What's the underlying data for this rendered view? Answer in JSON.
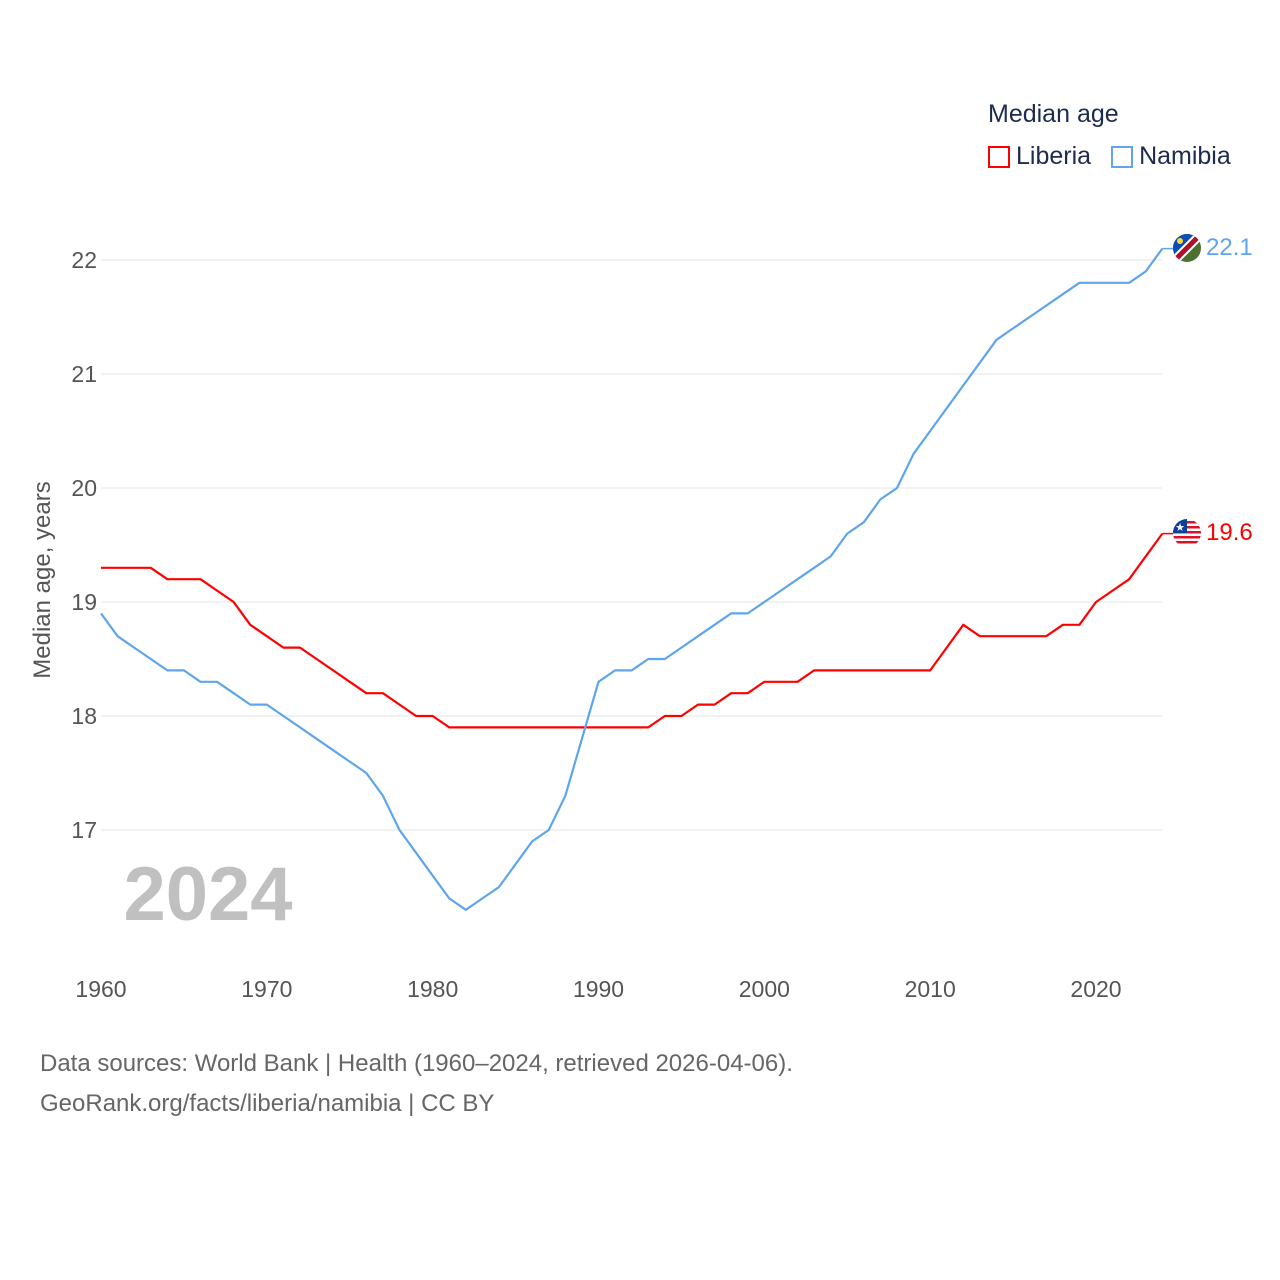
{
  "chart_data": {
    "type": "line",
    "title": "",
    "xlabel": "",
    "ylabel": "Median age, years",
    "xlim": [
      1960,
      2024
    ],
    "ylim": [
      16,
      22.6
    ],
    "yticks": [
      17,
      18,
      19,
      20,
      21,
      22
    ],
    "xticks": [
      1960,
      1970,
      1980,
      1990,
      2000,
      2010,
      2020
    ],
    "grid": true,
    "legend_title": "Median age",
    "legend_placement": "top-right",
    "year_label": "2024",
    "x": [
      1960,
      1961,
      1962,
      1963,
      1964,
      1965,
      1966,
      1967,
      1968,
      1969,
      1970,
      1971,
      1972,
      1973,
      1974,
      1975,
      1976,
      1977,
      1978,
      1979,
      1980,
      1981,
      1982,
      1983,
      1984,
      1985,
      1986,
      1987,
      1988,
      1989,
      1990,
      1991,
      1992,
      1993,
      1994,
      1995,
      1996,
      1997,
      1998,
      1999,
      2000,
      2001,
      2002,
      2003,
      2004,
      2005,
      2006,
      2007,
      2008,
      2009,
      2010,
      2011,
      2012,
      2013,
      2014,
      2015,
      2016,
      2017,
      2018,
      2019,
      2020,
      2021,
      2022,
      2023,
      2024
    ],
    "series": [
      {
        "name": "Liberia",
        "color": "#ff0000",
        "end_label": "19.6",
        "values": [
          19.3,
          19.3,
          19.3,
          19.3,
          19.2,
          19.2,
          19.2,
          19.1,
          19.0,
          18.8,
          18.7,
          18.6,
          18.6,
          18.5,
          18.4,
          18.3,
          18.2,
          18.2,
          18.1,
          18.0,
          18.0,
          17.9,
          17.9,
          17.9,
          17.9,
          17.9,
          17.9,
          17.9,
          17.9,
          17.9,
          17.9,
          17.9,
          17.9,
          17.9,
          18.0,
          18.0,
          18.1,
          18.1,
          18.2,
          18.2,
          18.3,
          18.3,
          18.3,
          18.4,
          18.4,
          18.4,
          18.4,
          18.4,
          18.4,
          18.4,
          18.4,
          18.6,
          18.8,
          18.7,
          18.7,
          18.7,
          18.7,
          18.7,
          18.8,
          18.8,
          19.0,
          19.1,
          19.2,
          19.4,
          19.6
        ]
      },
      {
        "name": "Namibia",
        "color": "#5ea5ec",
        "end_label": "22.1",
        "values": [
          18.9,
          18.7,
          18.6,
          18.5,
          18.4,
          18.4,
          18.3,
          18.3,
          18.2,
          18.1,
          18.1,
          18.0,
          17.9,
          17.8,
          17.7,
          17.6,
          17.5,
          17.3,
          17.0,
          16.8,
          16.6,
          16.4,
          16.3,
          16.4,
          16.5,
          16.7,
          16.9,
          17.0,
          17.3,
          17.8,
          18.3,
          18.4,
          18.4,
          18.5,
          18.5,
          18.6,
          18.7,
          18.8,
          18.9,
          18.9,
          19.0,
          19.1,
          19.2,
          19.3,
          19.4,
          19.6,
          19.7,
          19.9,
          20.0,
          20.3,
          20.5,
          20.7,
          20.9,
          21.1,
          21.3,
          21.4,
          21.5,
          21.6,
          21.7,
          21.8,
          21.8,
          21.8,
          21.8,
          21.9,
          22.1
        ]
      }
    ]
  },
  "footer": {
    "line1": "Data sources: World Bank | Health (1960–2024, retrieved 2026-04-06).",
    "line2": "GeoRank.org/facts/liberia/namibia | CC BY"
  }
}
